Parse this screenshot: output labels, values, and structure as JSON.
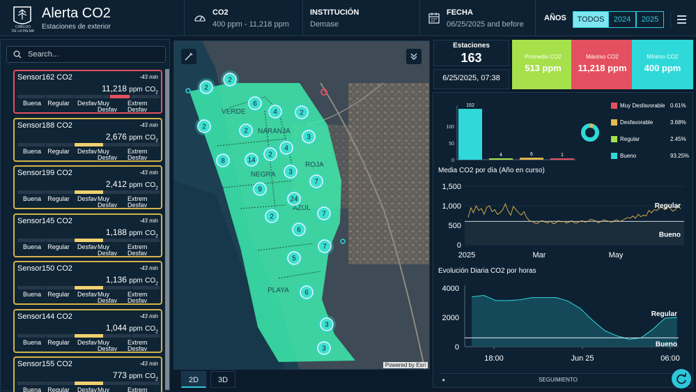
{
  "header": {
    "logo_text": "CABILDO\nDE LA PALMA",
    "title": "Alerta CO2",
    "subtitle": "Estaciones de exterior",
    "co2_label": "CO2",
    "co2_value": "400 ppm - 11,218 ppm",
    "inst_label": "INSTITUCIÓN",
    "inst_value": "Demase",
    "date_label": "FECHA",
    "date_value": "06/25/2025 and before",
    "years_label": "AÑOS",
    "years": [
      "TODOS",
      "2024",
      "2025"
    ],
    "years_active": "TODOS"
  },
  "sidebar": {
    "search_placeholder": "Search...",
    "scale_labels": [
      "Buena",
      "Regular",
      "Desfav",
      "Muy\nDesfav",
      "Extrem\nDesfav"
    ],
    "sensors": [
      {
        "name": "Sensor162 CO2",
        "time": "-43 min",
        "value": "11,218",
        "unit": "ppm",
        "sub": "CO",
        "sub2": "2",
        "level": 4,
        "status_color": "#e4505f"
      },
      {
        "name": "Sensor188 CO2",
        "time": "-43 min",
        "value": "2,676",
        "unit": "ppm",
        "sub": "CO",
        "sub2": "2",
        "level": 2,
        "status_color": "#d4b44a"
      },
      {
        "name": "Sensor199 CO2",
        "time": "-43 min",
        "value": "2,412",
        "unit": "ppm",
        "sub": "CO",
        "sub2": "2",
        "level": 2,
        "status_color": "#d4b44a"
      },
      {
        "name": "Sensor145 CO2",
        "time": "-43 min",
        "value": "1,188",
        "unit": "ppm",
        "sub": "CO",
        "sub2": "2",
        "level": 2,
        "status_color": "#d4b44a"
      },
      {
        "name": "Sensor150 CO2",
        "time": "-43 min",
        "value": "1,136",
        "unit": "ppm",
        "sub": "CO",
        "sub2": "2",
        "level": 2,
        "status_color": "#d4b44a"
      },
      {
        "name": "Sensor144 CO2",
        "time": "-43 min",
        "value": "1,044",
        "unit": "ppm",
        "sub": "CO",
        "sub2": "2",
        "level": 2,
        "status_color": "#d4b44a"
      },
      {
        "name": "Sensor155 CO2",
        "time": "-43 min",
        "value": "773",
        "unit": "ppm",
        "sub": "CO",
        "sub2": "2",
        "level": 2,
        "status_color": "#d4b44a"
      }
    ]
  },
  "map": {
    "zones": [
      "VERDE",
      "NARANJA",
      "NEGRA",
      "ROJA",
      "AZUL",
      "PLAYA"
    ],
    "clusters": [
      "2",
      "2",
      "6",
      "2",
      "4",
      "2",
      "2",
      "3",
      "2",
      "4",
      "14",
      "8",
      "3",
      "7",
      "9",
      "24",
      "2",
      "7",
      "6",
      "7",
      "5",
      "6",
      "3",
      "3"
    ],
    "attribution": "Powered by Esri",
    "view_tabs": [
      "2D",
      "3D"
    ],
    "active_view": "2D"
  },
  "kpis": {
    "stations_label": "Estaciones",
    "stations_value": "163",
    "date_value": "6/25/2025, 07:38",
    "avg_label": "Promedio CO2",
    "avg_value": "513 ppm",
    "max_label": "Máximo CO2",
    "max_value": "11,218 ppm",
    "min_label": "Mínimo CO2",
    "min_value": "400 ppm",
    "colors": {
      "avg": "#a6e04a",
      "max": "#e4505f",
      "min": "#2fd9d9"
    }
  },
  "chart_data": [
    {
      "type": "bar",
      "categories": [
        "Bueno",
        "Regular",
        "Desfavorable",
        "Muy Desfavorable"
      ],
      "values": [
        152,
        4,
        6,
        1
      ],
      "ylim": [
        0,
        150
      ],
      "yticks": [
        0,
        50,
        100,
        150
      ],
      "colors": [
        "#2fd9d9",
        "#a6e04a",
        "#e6b84e",
        "#e4505f"
      ],
      "legend": [
        {
          "name": "Muy Desfavorable",
          "pct": "0.61%",
          "color": "#e4505f"
        },
        {
          "name": "Desfavorable",
          "pct": "3.68%",
          "color": "#e6b84e"
        },
        {
          "name": "Regular",
          "pct": "2.45%",
          "color": "#a6e04a"
        },
        {
          "name": "Bueno",
          "pct": "93.25%",
          "color": "#2fd9d9"
        }
      ]
    },
    {
      "type": "line",
      "title": "Media CO2 por día (Año en curso)",
      "x_ticks": [
        "2025",
        "Mar",
        "May"
      ],
      "ylim": [
        0,
        1500
      ],
      "yticks": [
        "0",
        "500",
        "1,000",
        "1,500"
      ],
      "thresholds": [
        {
          "name": "Regular",
          "value": 1000
        },
        {
          "name": "Bueno",
          "value": 600
        }
      ],
      "series": [
        {
          "values": [
            700,
            950,
            820,
            1000,
            880,
            930,
            780,
            960,
            1000,
            850,
            900,
            780,
            820,
            900,
            1050,
            870,
            760,
            980,
            900,
            820,
            760,
            850,
            700,
            620,
            600,
            560,
            540,
            600,
            620,
            580,
            560,
            610,
            540,
            560,
            620,
            590,
            600,
            560,
            580,
            620,
            560,
            560,
            600,
            620,
            580,
            600,
            650,
            640,
            610,
            560,
            600,
            640,
            620,
            600,
            580,
            620,
            640,
            600,
            620,
            660,
            700,
            680,
            740,
            680,
            780,
            720,
            760,
            740,
            880,
            820,
            900,
            880,
            940,
            960,
            900,
            1000,
            940,
            860,
            900,
            1000,
            920
          ]
        }
      ]
    },
    {
      "type": "area",
      "title": "Evolución Diaria CO2 por horas",
      "x_ticks": [
        "18:00",
        "Jun 25",
        "06:00"
      ],
      "ylim": [
        0,
        4000
      ],
      "yticks": [
        "0",
        "2000",
        "4000"
      ],
      "thresholds": [
        {
          "name": "Regular",
          "value": 2000
        },
        {
          "name": "Bueno",
          "value": 600
        }
      ],
      "series": [
        {
          "values": [
            3400,
            3500,
            3150,
            3150,
            3200,
            3350,
            3350,
            3350,
            3100,
            2600,
            1800,
            1100,
            750,
            500,
            600,
            1200,
            1950,
            2000
          ]
        }
      ]
    }
  ],
  "footer": {
    "tracking_label": "SEGUIMIENTO"
  }
}
